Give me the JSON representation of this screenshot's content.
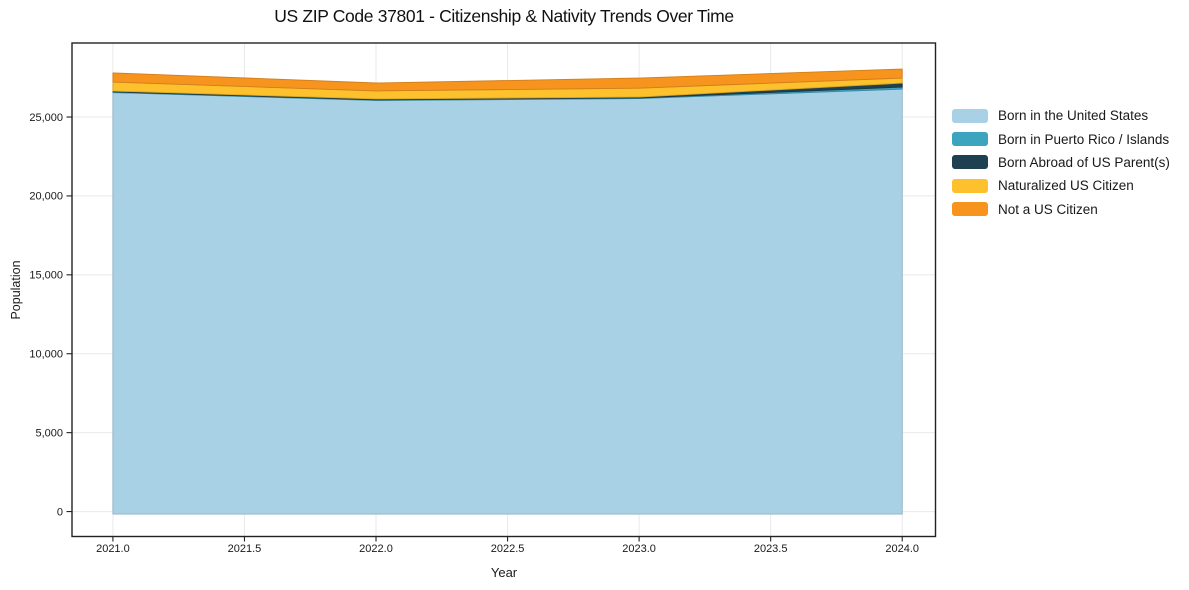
{
  "chart_data": {
    "type": "area",
    "stacked": true,
    "title": "US ZIP Code 37801 - Citizenship & Nativity Trends Over Time",
    "xlabel": "Year",
    "ylabel": "Population",
    "x": [
      2021,
      2022,
      2023,
      2024
    ],
    "series": [
      {
        "name": "Born in the United States",
        "color": "#a8d1e6",
        "values": [
          26550,
          26050,
          26170,
          26770
        ]
      },
      {
        "name": "Born in Puerto Rico / Islands",
        "color": "#3da4c0",
        "values": [
          45,
          40,
          40,
          130
        ]
      },
      {
        "name": "Born Abroad of US Parent(s)",
        "color": "#1f4050",
        "values": [
          50,
          55,
          55,
          250
        ]
      },
      {
        "name": "Naturalized US Citizen",
        "color": "#fcc12c",
        "values": [
          570,
          510,
          565,
          320
        ]
      },
      {
        "name": "Not a US Citizen",
        "color": "#f7941e",
        "values": [
          580,
          500,
          640,
          570
        ]
      }
    ],
    "totals": [
      27795,
      27155,
      27470,
      28040
    ],
    "x_ticks": [
      {
        "value": 2021.0,
        "label": "2021.0"
      },
      {
        "value": 2021.5,
        "label": "2021.5"
      },
      {
        "value": 2022.0,
        "label": "2022.0"
      },
      {
        "value": 2022.5,
        "label": "2022.5"
      },
      {
        "value": 2023.0,
        "label": "2023.0"
      },
      {
        "value": 2023.5,
        "label": "2023.5"
      },
      {
        "value": 2024.0,
        "label": "2024.0"
      }
    ],
    "y_ticks": [
      {
        "value": 0,
        "label": "0"
      },
      {
        "value": 5000,
        "label": "5,000"
      },
      {
        "value": 10000,
        "label": "10,000"
      },
      {
        "value": 15000,
        "label": "15,000"
      },
      {
        "value": 20000,
        "label": "20,000"
      },
      {
        "value": 25000,
        "label": "25,000"
      }
    ],
    "xlim": [
      2020.8445,
      2024.1265
    ],
    "ylim": [
      -1580,
      29690
    ],
    "grid": true,
    "grid_color": "#e9e9e9",
    "axis_color": "#222222",
    "text_color": "#191919",
    "legend_position": "right"
  }
}
